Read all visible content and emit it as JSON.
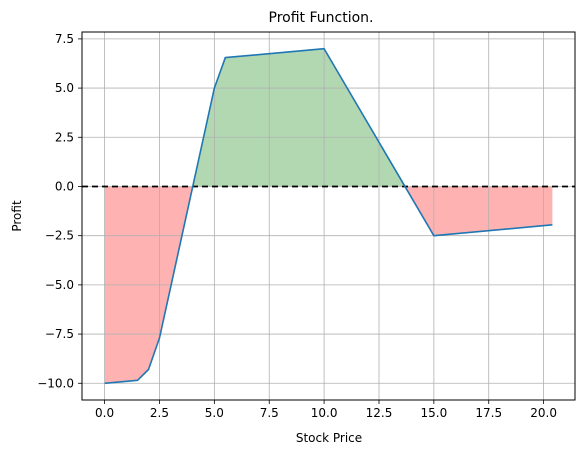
{
  "chart_data": {
    "type": "line",
    "title": "Profit Function.",
    "xlabel": "Stock Price",
    "ylabel": "Profit",
    "xlim": [
      -1.03,
      21.43
    ],
    "ylim": [
      -10.85,
      7.85
    ],
    "grid": true,
    "xticks": [
      0.0,
      2.5,
      5.0,
      7.5,
      10.0,
      12.5,
      15.0,
      17.5,
      20.0
    ],
    "xtick_labels": [
      "0.0",
      "2.5",
      "5.0",
      "7.5",
      "10.0",
      "12.5",
      "15.0",
      "17.5",
      "20.0"
    ],
    "yticks": [
      -10.0,
      -7.5,
      -5.0,
      -2.5,
      0.0,
      2.5,
      5.0,
      7.5
    ],
    "ytick_labels": [
      "−10.0",
      "−7.5",
      "−5.0",
      "−2.5",
      "0.0",
      "2.5",
      "5.0",
      "7.5"
    ],
    "reference_line": {
      "y": 0,
      "style": "dashed",
      "color": "#000000"
    },
    "series": [
      {
        "color": "#1f77b4",
        "x": [
          0,
          1.5,
          2.0,
          2.5,
          5.0,
          5.5,
          10.0,
          15.0,
          20.4
        ],
        "y": [
          -10.0,
          -9.85,
          -9.3,
          -7.7,
          5.0,
          6.55,
          7.0,
          -2.5,
          -1.95
        ]
      }
    ],
    "fill_colors": {
      "positive": "#b2d8b2",
      "negative": "#ffb2b2"
    }
  }
}
